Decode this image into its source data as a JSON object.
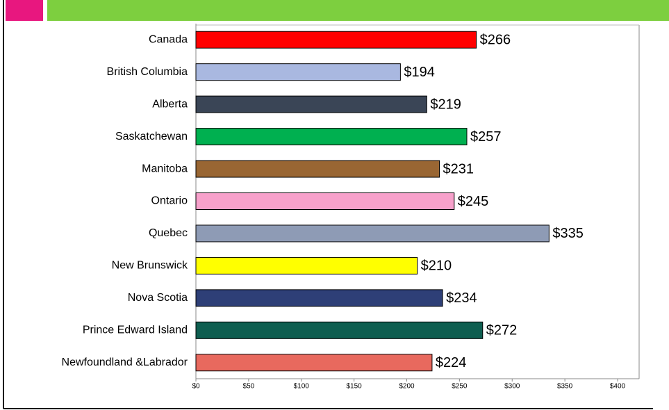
{
  "chart_data": {
    "type": "bar",
    "categories": [
      "Canada",
      "British Columbia",
      "Alberta",
      "Saskatchewan",
      "Manitoba",
      "Ontario",
      "Quebec",
      "New Brunswick",
      "Nova Scotia",
      "Prince Edward Island",
      "Newfoundland &Labrador"
    ],
    "values": [
      266,
      194,
      219,
      257,
      231,
      245,
      335,
      210,
      234,
      272,
      224
    ],
    "value_labels": [
      "$266",
      "$194",
      "$219",
      "$257",
      "$231",
      "$245",
      "$335",
      "$210",
      "$234",
      "$272",
      "$224"
    ],
    "colors": [
      "#ff0000",
      "#a9b8e0",
      "#3a4556",
      "#00b050",
      "#996633",
      "#f7a1cb",
      "#8e9bb5",
      "#ffff00",
      "#2e3f77",
      "#0e5e50",
      "#e8695e"
    ],
    "xlim": [
      0,
      400
    ],
    "xticks": [
      {
        "value": 0,
        "label": "$0"
      },
      {
        "value": 50,
        "label": "$50"
      },
      {
        "value": 100,
        "label": "$100"
      },
      {
        "value": 150,
        "label": "$150"
      },
      {
        "value": 200,
        "label": "$200"
      },
      {
        "value": 250,
        "label": "$250"
      },
      {
        "value": 300,
        "label": "$300"
      },
      {
        "value": 350,
        "label": "$350"
      },
      {
        "value": 400,
        "label": "$400"
      }
    ],
    "orientation": "horizontal"
  }
}
